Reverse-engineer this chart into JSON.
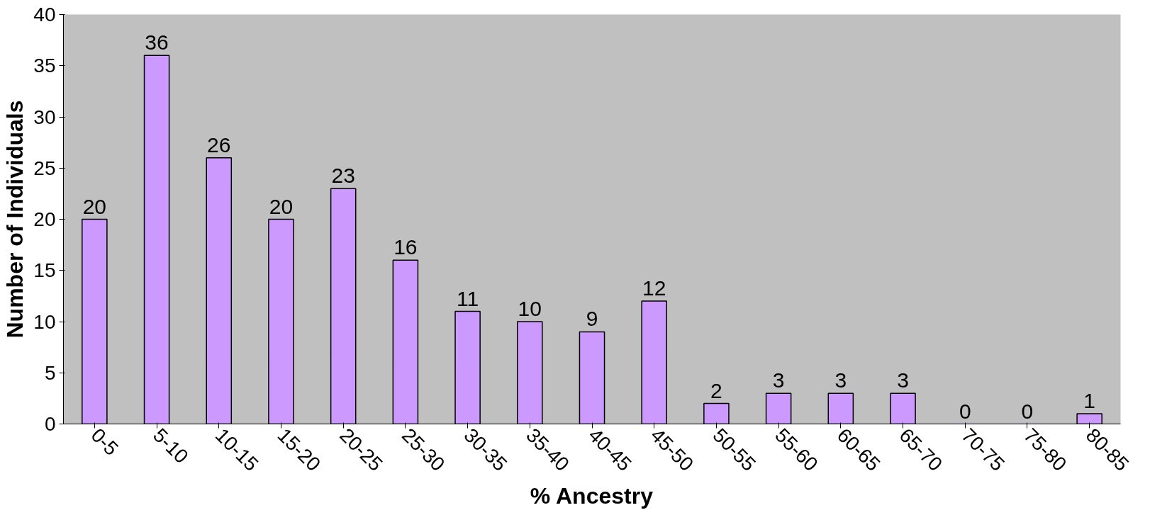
{
  "chart_data": {
    "type": "bar",
    "xlabel": "% Ancestry",
    "ylabel": "Number of Individuals",
    "categories": [
      "0-5",
      "5-10",
      "10-15",
      "15-20",
      "20-25",
      "25-30",
      "30-35",
      "35-40",
      "40-45",
      "45-50",
      "50-55",
      "55-60",
      "60-65",
      "65-70",
      "70-75",
      "75-80",
      "80-85"
    ],
    "values": [
      20,
      36,
      26,
      20,
      23,
      16,
      11,
      10,
      9,
      12,
      2,
      3,
      3,
      3,
      0,
      0,
      1
    ],
    "color": "#cc99ff",
    "ylim": [
      0,
      40
    ],
    "yticks": [
      0,
      5,
      10,
      15,
      20,
      25,
      30,
      35,
      40
    ],
    "grid": false,
    "data_labels": true
  }
}
